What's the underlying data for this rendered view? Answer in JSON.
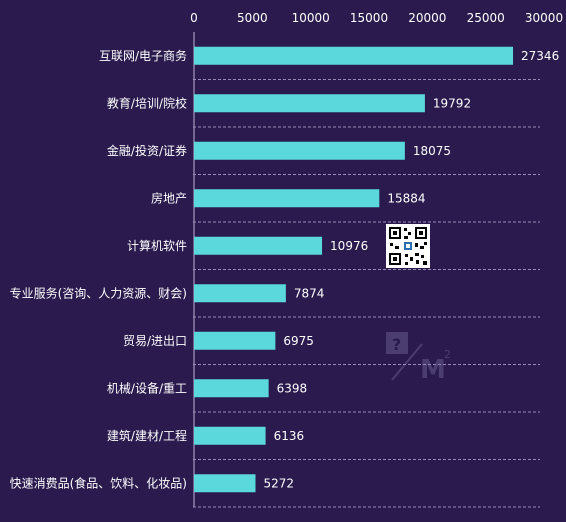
{
  "colors": {
    "background": "#2a1a4e",
    "bar": "#5ad8dc",
    "text": "#ffffff"
  },
  "chart_data": {
    "type": "bar",
    "orientation": "horizontal",
    "categories": [
      "互联网/电子商务",
      "教育/培训/院校",
      "金融/投资/证券",
      "房地产",
      "计算机软件",
      "专业服务(咨询、人力资源、财会)",
      "贸易/进出口",
      "机械/设备/重工",
      "建筑/建材/工程",
      "快速消费品(食品、饮料、化妆品)"
    ],
    "values": [
      27346,
      19792,
      18075,
      15884,
      10976,
      7874,
      6975,
      6398,
      6136,
      5272
    ],
    "xlim": [
      0,
      30000
    ],
    "xticks": [
      0,
      5000,
      10000,
      15000,
      20000,
      25000,
      30000
    ],
    "tick_labels": [
      "0",
      "5000",
      "10000",
      "15000",
      "20000",
      "25000",
      "30000"
    ],
    "title": "",
    "xlabel": "",
    "ylabel": "",
    "grid": false,
    "data_labels": true
  }
}
